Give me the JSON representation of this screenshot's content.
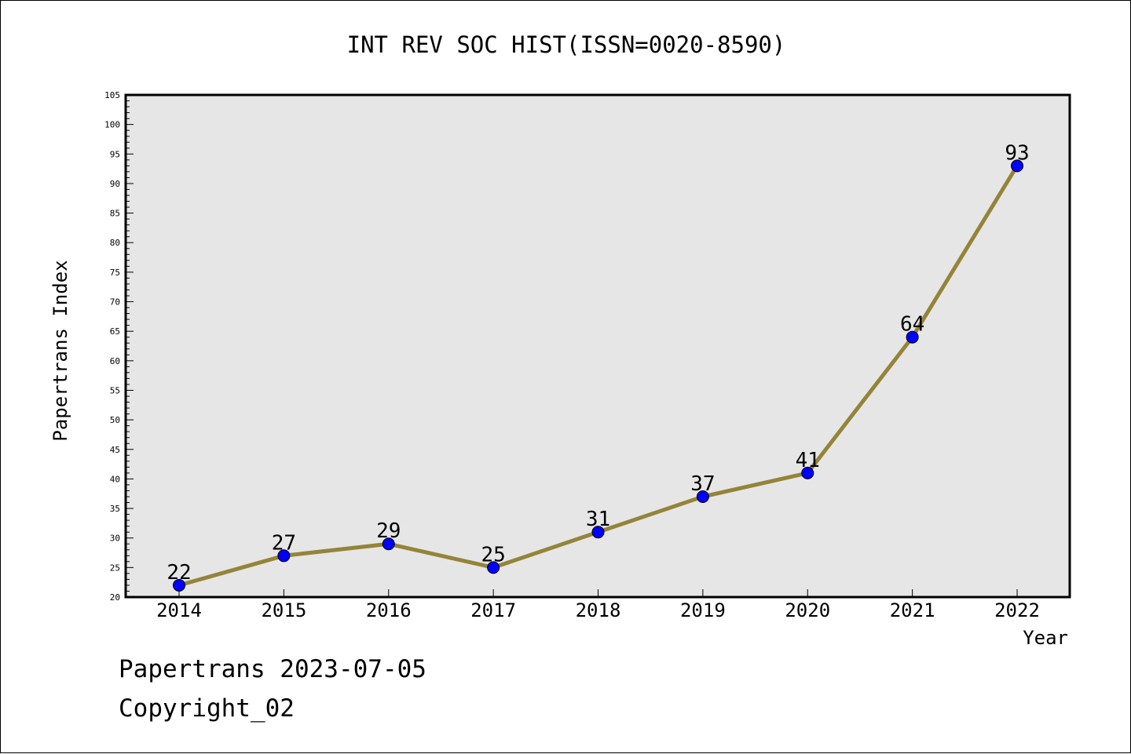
{
  "footer": {
    "line1": "Papertrans 2023-07-05",
    "line2": "Copyright_02"
  },
  "colors": {
    "plot_background": "#e6e6e6",
    "line": "#948439",
    "marker": "#0000ff",
    "frame": "#000000"
  },
  "chart_data": {
    "type": "line",
    "title": "INT REV SOC HIST(ISSN=0020-8590)",
    "xlabel": "Year",
    "ylabel": "Papertrans Index",
    "categories": [
      "2014",
      "2015",
      "2016",
      "2017",
      "2018",
      "2019",
      "2020",
      "2021",
      "2022"
    ],
    "series": [
      {
        "values": [
          22,
          27,
          29,
          25,
          31,
          37,
          41,
          64,
          93
        ]
      }
    ],
    "ylim": [
      20,
      105
    ],
    "yticks": [
      20,
      25,
      30,
      35,
      40,
      45,
      50,
      55,
      60,
      65,
      70,
      75,
      80,
      85,
      90,
      95,
      100,
      105
    ],
    "grid": false,
    "legend": "none",
    "data_labels": true
  }
}
